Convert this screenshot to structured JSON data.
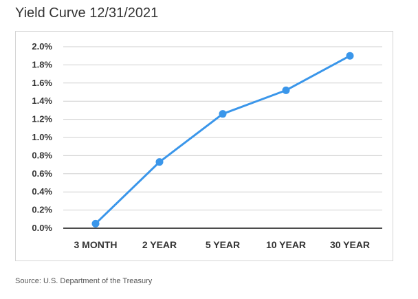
{
  "header": {
    "title": "Yield Curve 12/31/2021"
  },
  "footer": {
    "source": "Source: U.S. Department of the Treasury"
  },
  "chart_data": {
    "type": "line",
    "title": "Yield Curve 12/31/2021",
    "xlabel": "",
    "ylabel": "",
    "categories": [
      "3 MONTH",
      "2 YEAR",
      "5 YEAR",
      "10 YEAR",
      "30 YEAR"
    ],
    "series": [
      {
        "values": [
          0.05,
          0.73,
          1.26,
          1.52,
          1.9
        ],
        "color": "#3a96ea"
      }
    ],
    "yticks": [
      0.0,
      0.2,
      0.4,
      0.6,
      0.8,
      1.0,
      1.2,
      1.4,
      1.6,
      1.8,
      2.0
    ],
    "ytick_labels": [
      "0.0%",
      "0.2%",
      "0.4%",
      "0.6%",
      "0.8%",
      "1.0%",
      "1.2%",
      "1.4%",
      "1.6%",
      "1.8%",
      "2.0%"
    ],
    "ylim": [
      0,
      2.0
    ],
    "grid": true,
    "legend": "none"
  }
}
